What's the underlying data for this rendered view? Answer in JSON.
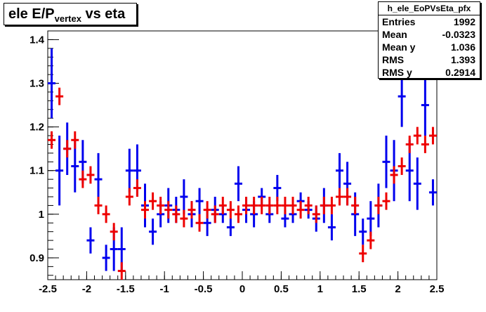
{
  "title": {
    "main": "ele E/P",
    "sub": "vertex",
    "rest": " vs eta"
  },
  "stats": {
    "name": "h_ele_EoPVsEta_pfx",
    "rows": [
      {
        "key": "Entries",
        "value": "1992"
      },
      {
        "key": "Mean",
        "value": "-0.0323"
      },
      {
        "key": "Mean y",
        "value": "1.036"
      },
      {
        "key": "RMS",
        "value": "1.393"
      },
      {
        "key": "RMS y",
        "value": "0.2914"
      }
    ]
  },
  "colors": {
    "blue": "#0000ee",
    "red": "#ee0000",
    "axis": "#000000"
  },
  "chart_data": {
    "type": "scatter",
    "xlim": [
      -2.5,
      2.5
    ],
    "ylim": [
      0.85,
      1.42
    ],
    "xticks": [
      "-2.5",
      "-2",
      "-1.5",
      "-1",
      "-0.5",
      "0",
      "0.5",
      "1",
      "1.5",
      "2",
      "2.5"
    ],
    "xtick_values": [
      -2.5,
      -2,
      -1.5,
      -1,
      -0.5,
      0,
      0.5,
      1,
      1.5,
      2,
      2.5
    ],
    "yticks": [
      "0.9",
      "1",
      "1.1",
      "1.2",
      "1.3",
      "1.4"
    ],
    "ytick_values": [
      0.9,
      1.0,
      1.1,
      1.2,
      1.3,
      1.4
    ],
    "series": [
      {
        "color": "blue",
        "x": [
          -2.45,
          -2.35,
          -2.25,
          -2.15,
          -2.05,
          -1.95,
          -1.85,
          -1.75,
          -1.65,
          -1.55,
          -1.45,
          -1.35,
          -1.25,
          -1.15,
          -1.05,
          -0.95,
          -0.85,
          -0.75,
          -0.65,
          -0.55,
          -0.45,
          -0.35,
          -0.25,
          -0.15,
          -0.05,
          0.05,
          0.15,
          0.25,
          0.35,
          0.45,
          0.55,
          0.65,
          0.75,
          0.85,
          0.95,
          1.05,
          1.15,
          1.25,
          1.35,
          1.45,
          1.55,
          1.65,
          1.75,
          1.85,
          1.95,
          2.05,
          2.15,
          2.25,
          2.35,
          2.45
        ],
        "y": [
          1.3,
          1.1,
          1.15,
          1.11,
          1.12,
          0.94,
          1.08,
          0.9,
          0.92,
          0.92,
          1.1,
          1.1,
          1.02,
          0.96,
          1.0,
          1.02,
          1.01,
          1.04,
          1.0,
          1.03,
          0.98,
          1.01,
          1.0,
          0.97,
          1.07,
          1.01,
          1.0,
          1.04,
          1.0,
          1.06,
          0.99,
          1.0,
          1.03,
          1.01,
          0.99,
          1.02,
          0.97,
          1.1,
          1.07,
          1.0,
          0.96,
          0.99,
          1.02,
          1.12,
          1.1,
          1.27,
          1.1,
          1.07,
          1.25,
          1.05
        ],
        "err": [
          0.08,
          0.08,
          0.06,
          0.06,
          0.05,
          0.03,
          0.06,
          0.03,
          0.05,
          0.05,
          0.05,
          0.06,
          0.05,
          0.03,
          0.03,
          0.04,
          0.03,
          0.04,
          0.03,
          0.03,
          0.03,
          0.03,
          0.02,
          0.02,
          0.04,
          0.03,
          0.03,
          0.02,
          0.02,
          0.03,
          0.02,
          0.02,
          0.02,
          0.02,
          0.03,
          0.04,
          0.03,
          0.04,
          0.05,
          0.05,
          0.03,
          0.04,
          0.05,
          0.06,
          0.07,
          0.07,
          0.07,
          0.06,
          0.07,
          0.03
        ]
      },
      {
        "color": "red",
        "x": [
          -2.45,
          -2.35,
          -2.25,
          -2.15,
          -2.05,
          -1.95,
          -1.85,
          -1.75,
          -1.65,
          -1.55,
          -1.45,
          -1.35,
          -1.25,
          -1.15,
          -1.05,
          -0.95,
          -0.85,
          -0.75,
          -0.65,
          -0.55,
          -0.45,
          -0.35,
          -0.25,
          -0.15,
          -0.05,
          0.05,
          0.15,
          0.25,
          0.35,
          0.45,
          0.55,
          0.65,
          0.75,
          0.85,
          0.95,
          1.05,
          1.15,
          1.25,
          1.35,
          1.45,
          1.55,
          1.65,
          1.75,
          1.85,
          1.95,
          2.05,
          2.15,
          2.25,
          2.35,
          2.45
        ],
        "y": [
          1.17,
          1.27,
          1.15,
          1.17,
          1.08,
          1.09,
          1.02,
          1.0,
          0.96,
          0.87,
          1.04,
          1.06,
          1.01,
          1.03,
          1.02,
          1.01,
          1.0,
          0.99,
          1.01,
          0.98,
          1.01,
          1.0,
          1.02,
          1.01,
          1.0,
          1.02,
          1.02,
          1.02,
          1.02,
          1.02,
          1.02,
          1.02,
          1.01,
          1.02,
          1.0,
          1.02,
          1.02,
          1.04,
          1.04,
          1.02,
          0.91,
          0.94,
          1.02,
          1.03,
          1.09,
          1.11,
          1.16,
          1.18,
          1.16,
          1.18
        ]
      }
    ]
  }
}
